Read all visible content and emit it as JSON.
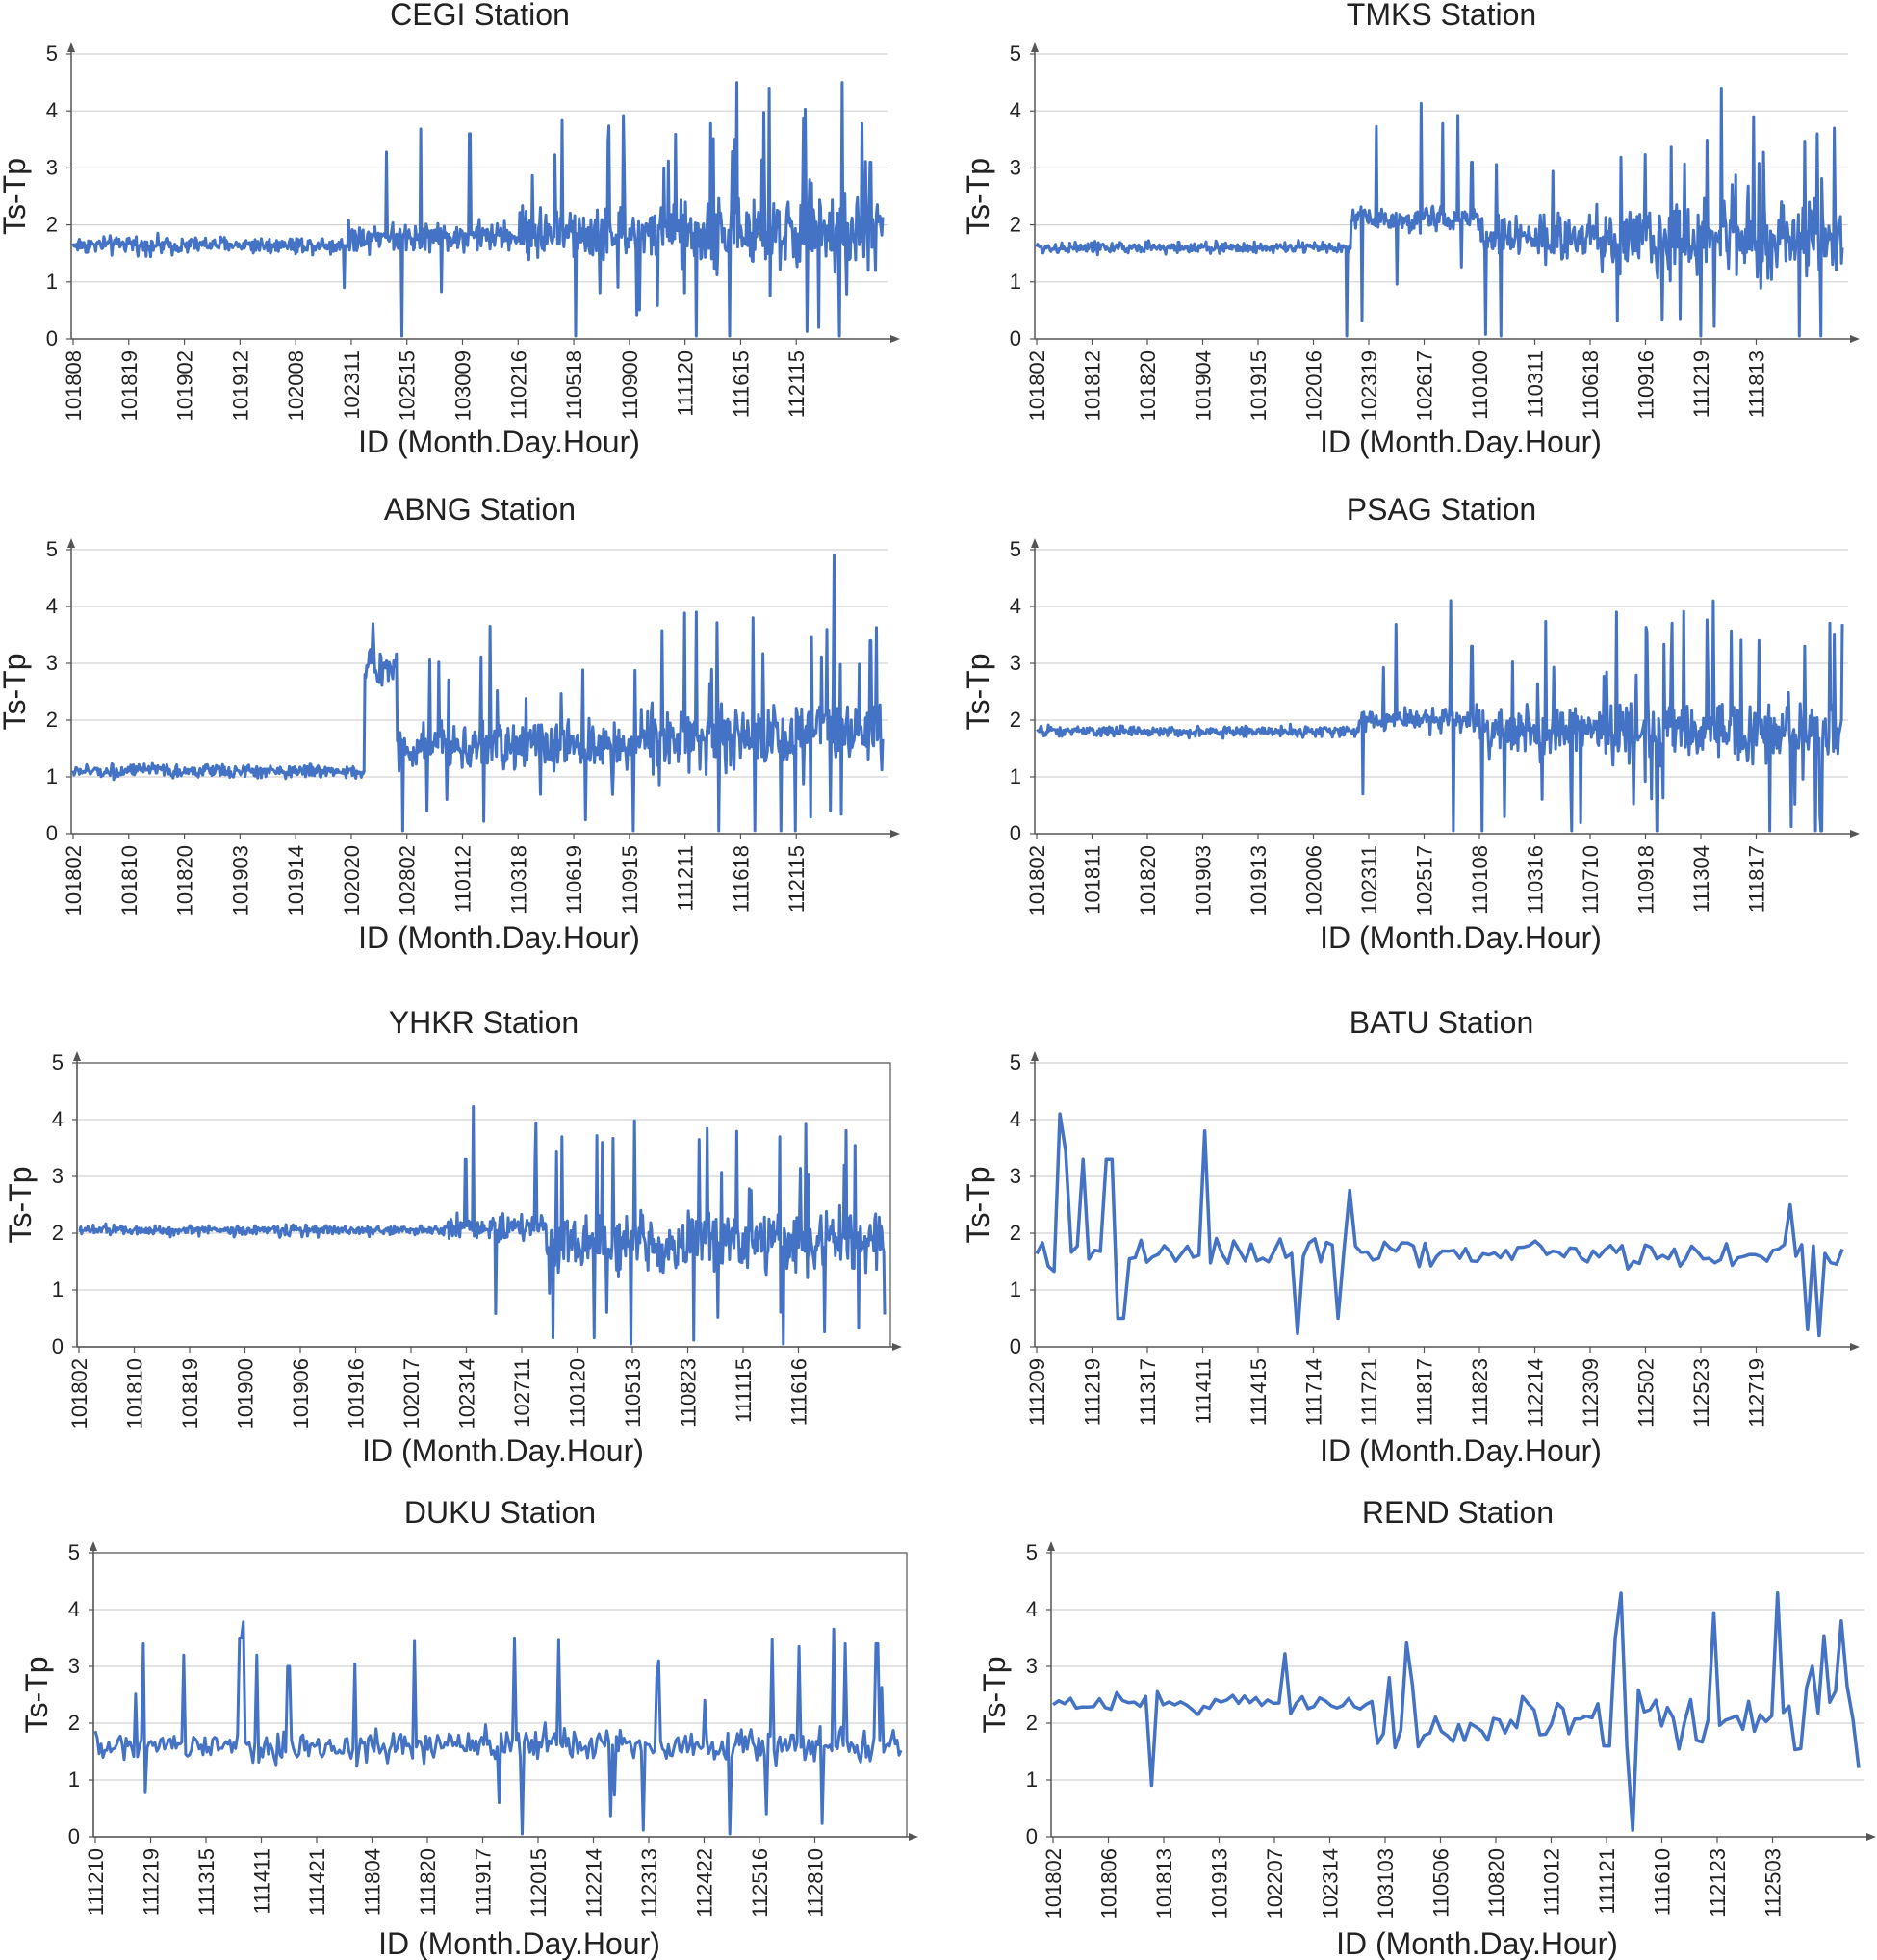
{
  "series_color": "#4472C4",
  "panels": [
    {
      "title": "CEGI Station",
      "ylabel": "Ts-Tp",
      "xlabel": "ID (Month.Day.Hour)",
      "yticks": [
        "0",
        "1",
        "2",
        "3",
        "4",
        "5"
      ],
      "xticks": [
        "101808",
        "101819",
        "101902",
        "101912",
        "102008",
        "102311",
        "102515",
        "103009",
        "110216",
        "110518",
        "110900",
        "111120",
        "111615",
        "112115"
      ]
    },
    {
      "title": "TMKS Station",
      "ylabel": "Ts-Tp",
      "xlabel": "ID (Month.Day.Hour)",
      "yticks": [
        "0",
        "1",
        "2",
        "3",
        "4",
        "5"
      ],
      "xticks": [
        "101802",
        "101812",
        "101820",
        "101904",
        "101915",
        "102016",
        "102319",
        "102617",
        "110100",
        "110311",
        "110618",
        "110916",
        "111219",
        "111813"
      ]
    },
    {
      "title": "ABNG Station",
      "ylabel": "Ts-Tp",
      "xlabel": "ID (Month.Day.Hour)",
      "yticks": [
        "0",
        "1",
        "2",
        "3",
        "4",
        "5"
      ],
      "xticks": [
        "101802",
        "101810",
        "101820",
        "101903",
        "101914",
        "102020",
        "102802",
        "110112",
        "110318",
        "110619",
        "110915",
        "111211",
        "111618",
        "112115"
      ]
    },
    {
      "title": "PSAG Station",
      "ylabel": "Ts-Tp",
      "xlabel": "ID (Month.Day.Hour)",
      "yticks": [
        "0",
        "1",
        "2",
        "3",
        "4",
        "5"
      ],
      "xticks": [
        "101802",
        "101811",
        "101820",
        "101903",
        "101913",
        "102006",
        "102311",
        "102517",
        "110108",
        "110316",
        "110710",
        "110918",
        "111304",
        "111817"
      ]
    },
    {
      "title": "YHKR Station",
      "ylabel": "Ts-Tp",
      "xlabel": "ID (Month.Day.Hour)",
      "yticks": [
        "0",
        "1",
        "2",
        "3",
        "4",
        "5"
      ],
      "xticks": [
        "101802",
        "101810",
        "101819",
        "101900",
        "101906",
        "101916",
        "102017",
        "102314",
        "102711",
        "110120",
        "110513",
        "110823",
        "111115",
        "111616"
      ]
    },
    {
      "title": "BATU Station",
      "ylabel": "Ts-Tp",
      "xlabel": "ID (Month.Day.Hour)",
      "yticks": [
        "0",
        "1",
        "2",
        "3",
        "4",
        "5"
      ],
      "xticks": [
        "111209",
        "111219",
        "111317",
        "111411",
        "111415",
        "111714",
        "111721",
        "111817",
        "111823",
        "112214",
        "112309",
        "112502",
        "112523",
        "112719"
      ]
    },
    {
      "title": "DUKU Station",
      "ylabel": "Ts-Tp",
      "xlabel": "ID (Month.Day.Hour)",
      "yticks": [
        "0",
        "1",
        "2",
        "3",
        "4",
        "5"
      ],
      "xticks": [
        "111210",
        "111219",
        "111315",
        "111411",
        "111421",
        "111804",
        "111820",
        "111917",
        "112015",
        "112214",
        "112313",
        "112422",
        "112516",
        "112810"
      ]
    },
    {
      "title": "REND Station",
      "ylabel": "Ts-Tp",
      "xlabel": "ID (Month.Day.Hour)",
      "yticks": [
        "0",
        "1",
        "2",
        "3",
        "4",
        "5"
      ],
      "xticks": [
        "101802",
        "101806",
        "101813",
        "101913",
        "102207",
        "102314",
        "103103",
        "110506",
        "110820",
        "111012",
        "111121",
        "111610",
        "112123",
        "112503"
      ]
    }
  ],
  "chart_data": [
    {
      "type": "line",
      "title": "CEGI Station",
      "xlabel": "ID (Month.Day.Hour)",
      "ylabel": "Ts-Tp",
      "ylim": [
        0,
        5
      ],
      "categories": [
        "101808",
        "101819",
        "101902",
        "101912",
        "102008",
        "102311",
        "102515",
        "103009",
        "110216",
        "110518",
        "110900",
        "111120",
        "111615",
        "112115"
      ],
      "series": [
        {
          "values": [
            1.7,
            1.6,
            1.5,
            1.6,
            1.7,
            1.8,
            1.9,
            1.8,
            1.8,
            1.9,
            1.8,
            2.1,
            2.2,
            2.3
          ]
        }
      ],
      "grid": "horizontal"
    },
    {
      "type": "line",
      "title": "TMKS Station",
      "xlabel": "ID (Month.Day.Hour)",
      "ylabel": "Ts-Tp",
      "ylim": [
        0,
        5
      ],
      "categories": [
        "101802",
        "101812",
        "101820",
        "101904",
        "101915",
        "102016",
        "102319",
        "102617",
        "110100",
        "110311",
        "110618",
        "110916",
        "111219",
        "111813"
      ],
      "series": [
        {
          "values": [
            1.6,
            1.6,
            1.5,
            1.5,
            1.6,
            1.6,
            2.1,
            1.9,
            1.8,
            1.8,
            1.7,
            1.8,
            1.9,
            1.8
          ]
        }
      ],
      "grid": "horizontal"
    },
    {
      "type": "line",
      "title": "ABNG Station",
      "xlabel": "ID (Month.Day.Hour)",
      "ylabel": "Ts-Tp",
      "ylim": [
        0,
        5
      ],
      "categories": [
        "101802",
        "101810",
        "101820",
        "101903",
        "101914",
        "102020",
        "102802",
        "110112",
        "110318",
        "110619",
        "110915",
        "111211",
        "111618",
        "112115"
      ],
      "series": [
        {
          "values": [
            1.2,
            1.1,
            1.0,
            1.1,
            1.0,
            2.9,
            1.6,
            1.5,
            1.4,
            1.5,
            1.5,
            1.8,
            1.7,
            1.8
          ]
        }
      ],
      "grid": "horizontal"
    },
    {
      "type": "line",
      "title": "PSAG Station",
      "xlabel": "ID (Month.Day.Hour)",
      "ylabel": "Ts-Tp",
      "ylim": [
        0,
        5
      ],
      "categories": [
        "101802",
        "101811",
        "101820",
        "101903",
        "101913",
        "102006",
        "102311",
        "102517",
        "110108",
        "110316",
        "110710",
        "110918",
        "111304",
        "111817"
      ],
      "series": [
        {
          "values": [
            1.8,
            1.8,
            1.8,
            1.8,
            1.8,
            1.9,
            2.0,
            2.1,
            1.7,
            1.8,
            1.8,
            1.7,
            1.9,
            1.8
          ]
        }
      ],
      "grid": "horizontal"
    },
    {
      "type": "line",
      "title": "YHKR Station",
      "xlabel": "ID (Month.Day.Hour)",
      "ylabel": "Ts-Tp",
      "ylim": [
        0,
        5
      ],
      "categories": [
        "101802",
        "101810",
        "101819",
        "101900",
        "101906",
        "101916",
        "102017",
        "102314",
        "102711",
        "110120",
        "110513",
        "110823",
        "111115",
        "111616"
      ],
      "series": [
        {
          "values": [
            2.1,
            2.1,
            2.1,
            2.1,
            2.1,
            2.2,
            2.1,
            2.1,
            2.0,
            1.8,
            1.8,
            1.8,
            1.8,
            1.9
          ]
        }
      ],
      "grid": "horizontal"
    },
    {
      "type": "line",
      "title": "BATU Station",
      "xlabel": "ID (Month.Day.Hour)",
      "ylabel": "Ts-Tp",
      "ylim": [
        0,
        5
      ],
      "categories": [
        "111209",
        "111219",
        "111317",
        "111411",
        "111415",
        "111714",
        "111721",
        "111817",
        "111823",
        "112214",
        "112309",
        "112502",
        "112523",
        "112719"
      ],
      "series": [
        {
          "values": [
            2.0,
            1.7,
            1.8,
            1.8,
            1.4,
            1.6,
            1.5,
            1.3,
            1.5,
            1.8,
            1.8,
            1.6,
            1.7,
            1.5
          ]
        }
      ],
      "grid": "horizontal"
    },
    {
      "type": "line",
      "title": "DUKU Station",
      "xlabel": "ID (Month.Day.Hour)",
      "ylabel": "Ts-Tp",
      "ylim": [
        0,
        5
      ],
      "categories": [
        "111210",
        "111219",
        "111315",
        "111411",
        "111421",
        "111804",
        "111820",
        "111917",
        "112015",
        "112214",
        "112313",
        "112422",
        "112516",
        "112810"
      ],
      "series": [
        {
          "values": [
            1.6,
            1.5,
            1.4,
            1.6,
            1.6,
            1.6,
            1.6,
            1.5,
            1.7,
            1.5,
            1.5,
            1.4,
            1.5,
            1.6
          ]
        }
      ],
      "grid": "horizontal"
    },
    {
      "type": "line",
      "title": "REND Station",
      "xlabel": "ID (Month.Day.Hour)",
      "ylabel": "Ts-Tp",
      "ylim": [
        0,
        5
      ],
      "categories": [
        "101802",
        "101806",
        "101813",
        "101913",
        "102207",
        "102314",
        "103103",
        "110506",
        "110820",
        "111012",
        "111121",
        "111610",
        "112123",
        "112503"
      ],
      "series": [
        {
          "values": [
            1.8,
            2.4,
            2.4,
            2.4,
            2.4,
            2.3,
            2.2,
            1.7,
            2.0,
            2.1,
            2.5,
            2.3,
            2.2,
            1.6
          ]
        }
      ],
      "grid": "horizontal"
    }
  ]
}
